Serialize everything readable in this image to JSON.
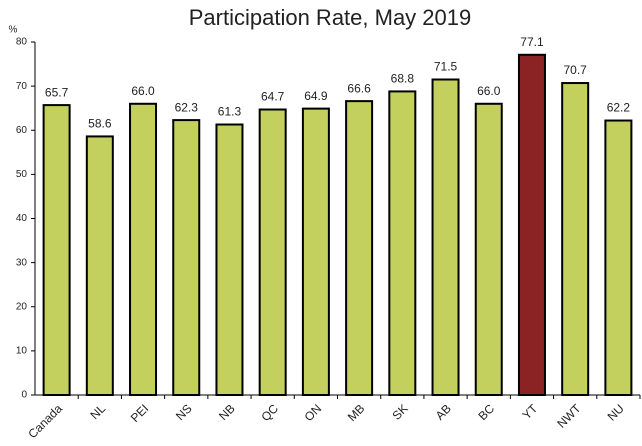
{
  "chart_data": {
    "type": "bar",
    "title": "Participation Rate, May 2019",
    "y_label": "%",
    "categories": [
      "Canada",
      "NL",
      "PEI",
      "NS",
      "NB",
      "QC",
      "ON",
      "MB",
      "SK",
      "AB",
      "BC",
      "YT",
      "NWT",
      "NU"
    ],
    "values": [
      65.7,
      58.6,
      66.0,
      62.3,
      61.3,
      64.7,
      64.9,
      66.6,
      68.8,
      71.5,
      66.0,
      77.1,
      70.7,
      62.2
    ],
    "value_labels": [
      "65.7",
      "58.6",
      "66.0",
      "62.3",
      "61.3",
      "64.7",
      "64.9",
      "66.6",
      "68.8",
      "71.5",
      "66.0",
      "77.1",
      "70.7",
      "62.2"
    ],
    "colors": [
      "#c3d05d",
      "#c3d05d",
      "#c3d05d",
      "#c3d05d",
      "#c3d05d",
      "#c3d05d",
      "#c3d05d",
      "#c3d05d",
      "#c3d05d",
      "#c3d05d",
      "#c3d05d",
      "#8b2224",
      "#c3d05d",
      "#c3d05d"
    ],
    "ylim": [
      0,
      80
    ],
    "yticks": [
      0,
      10,
      20,
      30,
      40,
      50,
      60,
      70,
      80
    ],
    "grid": false
  }
}
